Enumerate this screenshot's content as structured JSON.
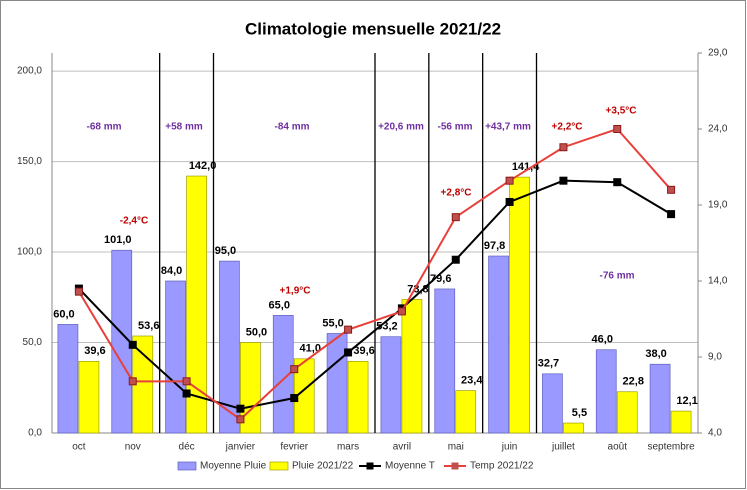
{
  "chart_data": {
    "type": "bar-line",
    "title": "Climatologie mensuelle 2021/22",
    "categories": [
      "oct",
      "nov",
      "déc",
      "janvier",
      "fevrier",
      "mars",
      "avril",
      "mai",
      "juin",
      "juillet",
      "août",
      "septembre"
    ],
    "series": [
      {
        "name": "Moyenne Pluie",
        "type": "bar",
        "color": "#9999ff",
        "values": [
          60,
          101,
          84,
          95,
          65,
          55,
          53.2,
          79.6,
          97.8,
          32.7,
          46,
          38
        ],
        "value_labels": [
          "60,0",
          "101,0",
          "84,0",
          "95,0",
          "65,0",
          "55,0",
          "53,2",
          "79,6",
          "97,8",
          "32,7",
          "46,0",
          "38,0"
        ]
      },
      {
        "name": "Pluie 2021/22",
        "type": "bar",
        "color": "#ffff00",
        "values": [
          39.6,
          53.6,
          142,
          50,
          41,
          39.6,
          73.8,
          23.4,
          141.4,
          5.5,
          22.8,
          12.1
        ],
        "value_labels": [
          "39,6",
          "53,6",
          "142,0",
          "50,0",
          "41,0",
          "39,6",
          "73,8",
          "23,4",
          "141,4",
          "5,5",
          "22,8",
          "12,1"
        ]
      },
      {
        "name": "Moyenne T",
        "type": "line",
        "axis": "y2",
        "color": "#000000",
        "values": [
          13.5,
          9.8,
          6.6,
          5.6,
          6.3,
          9.3,
          12.2,
          15.4,
          19.2,
          20.6,
          20.5,
          18.4
        ]
      },
      {
        "name": "Temp 2021/22",
        "type": "line",
        "axis": "y2",
        "color": "#e8403a",
        "values": [
          13.3,
          7.4,
          7.4,
          4.9,
          8.2,
          10.8,
          12.0,
          18.2,
          20.6,
          22.8,
          24.0,
          20.0
        ]
      }
    ],
    "ylim": [
      0,
      210
    ],
    "yticks": [
      {
        "value": 0,
        "label": "0,0"
      },
      {
        "value": 50,
        "label": "50,0"
      },
      {
        "value": 100,
        "label": "100,0"
      },
      {
        "value": 150,
        "label": "150,0"
      },
      {
        "value": 200,
        "label": "200,0"
      }
    ],
    "y2lim": [
      4,
      29
    ],
    "y2ticks": [
      {
        "value": 4,
        "label": "4,0"
      },
      {
        "value": 9,
        "label": "9,0"
      },
      {
        "value": 14,
        "label": "14,0"
      },
      {
        "value": 19,
        "label": "19,0"
      },
      {
        "value": 24,
        "label": "24,0"
      },
      {
        "value": 29,
        "label": "29,0"
      }
    ],
    "grid": true,
    "legend": "bottom",
    "rain_annotations": [
      "-68 mm",
      "+58 mm",
      "-84 mm",
      "+20,6 mm",
      "-56 mm",
      "+43,7 mm",
      "-76 mm"
    ],
    "temp_annotations": [
      "-2,4°C",
      "+1,9°C",
      "+2,8°C",
      "+2,2°C",
      "+3,5°C"
    ]
  }
}
